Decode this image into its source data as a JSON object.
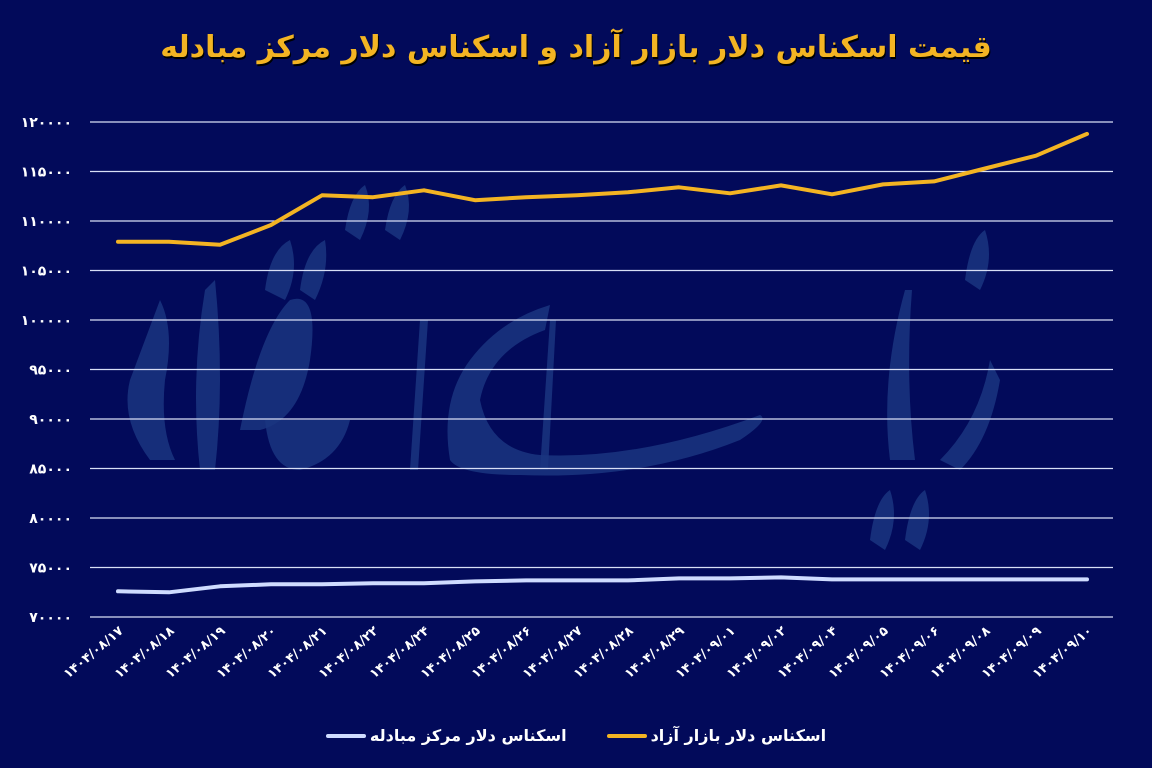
{
  "title": "قیمت اسکناس دلار بازار آزاد و اسکناس دلار مرکز مبادله",
  "watermark": "دنیای اقتصاد",
  "colors": {
    "background": "#020a5a",
    "free_market": "#f3b423",
    "exchange_center": "#cfdcff",
    "gridline": "#d8dff5",
    "title": "#f3b423",
    "watermark": "#1a3580"
  },
  "legend": {
    "items": [
      {
        "label": "اسکناس دلار بازار آزاد",
        "color": "#f3b423"
      },
      {
        "label": "اسکناس دلار مرکز مبادله",
        "color": "#cfdcff"
      }
    ]
  },
  "chart_data": {
    "type": "line",
    "title": "قیمت اسکناس دلار بازار آزاد و اسکناس دلار مرکز مبادله",
    "xlabel": "",
    "ylabel": "",
    "ylim": [
      70000,
      120000
    ],
    "yticks": [
      120000,
      115000,
      110000,
      105000,
      100000,
      95000,
      90000,
      85000,
      80000,
      75000,
      70000
    ],
    "ytick_labels": [
      "۱۲۰۰۰۰",
      "۱۱۵۰۰۰",
      "۱۱۰۰۰۰",
      "۱۰۵۰۰۰",
      "۱۰۰۰۰۰",
      "۹۵۰۰۰",
      "۹۰۰۰۰",
      "۸۵۰۰۰",
      "۸۰۰۰۰",
      "۷۵۰۰۰",
      "۷۰۰۰۰"
    ],
    "grid": true,
    "legend_position": "bottom",
    "categories": [
      "۱۴۰۴/۰۸/۱۷",
      "۱۴۰۴/۰۸/۱۸",
      "۱۴۰۴/۰۸/۱۹",
      "۱۴۰۴/۰۸/۲۰",
      "۱۴۰۴/۰۸/۲۱",
      "۱۴۰۴/۰۸/۲۲",
      "۱۴۰۴/۰۸/۲۴",
      "۱۴۰۴/۰۸/۲۵",
      "۱۴۰۴/۰۸/۲۶",
      "۱۴۰۴/۰۸/۲۷",
      "۱۴۰۴/۰۸/۲۸",
      "۱۴۰۴/۰۸/۲۹",
      "۱۴۰۴/۰۹/۰۱",
      "۱۴۰۴/۰۹/۰۲",
      "۱۴۰۴/۰۹/۰۴",
      "۱۴۰۴/۰۹/۰۵",
      "۱۴۰۴/۰۹/۰۶",
      "۱۴۰۴/۰۹/۰۸",
      "۱۴۰۴/۰۹/۰۹",
      "۱۴۰۴/۰۹/۱۰"
    ],
    "series": [
      {
        "name": "اسکناس دلار بازار آزاد",
        "color": "#f3b423",
        "values": [
          107900,
          107900,
          107600,
          109600,
          112600,
          112400,
          113100,
          112100,
          112400,
          112600,
          112900,
          113400,
          112800,
          113600,
          112700,
          113700,
          114000,
          115300,
          116600,
          118800
        ]
      },
      {
        "name": "اسکناس دلار مرکز مبادله",
        "color": "#cfdcff",
        "values": [
          72600,
          72500,
          73100,
          73300,
          73300,
          73400,
          73400,
          73600,
          73700,
          73700,
          73700,
          73900,
          73900,
          74000,
          73800,
          73800,
          73800,
          73800,
          73800,
          73800
        ]
      }
    ]
  }
}
